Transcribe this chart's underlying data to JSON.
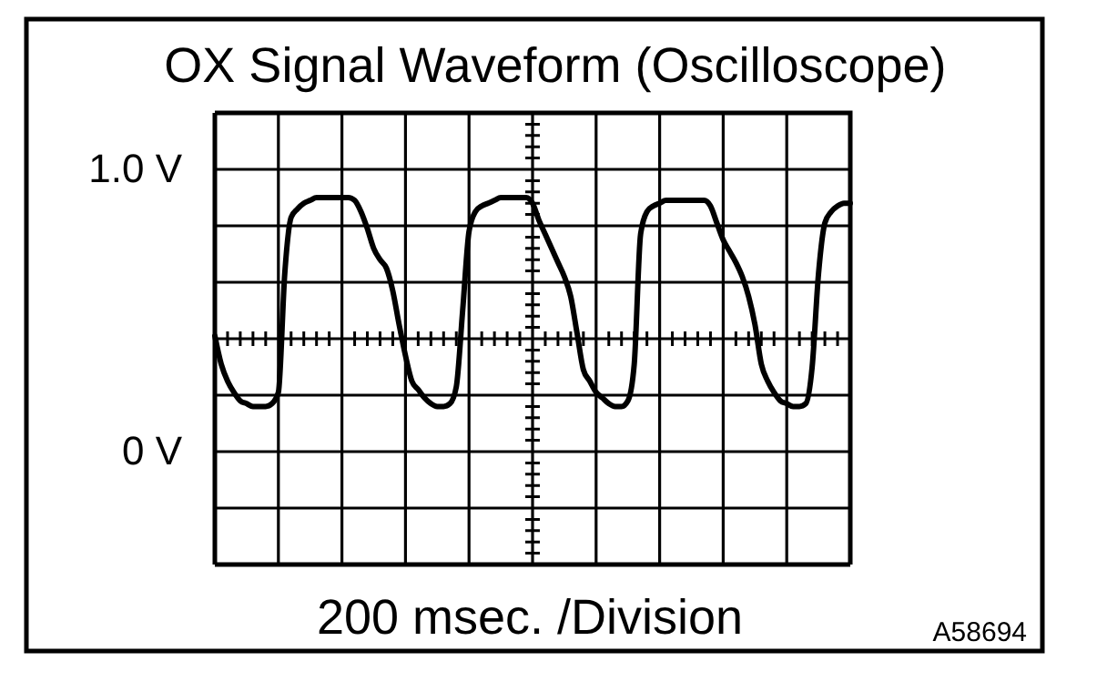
{
  "chart_data": {
    "type": "line",
    "title": "OX Signal Waveform (Oscilloscope)",
    "xlabel": "200 msec. /Division",
    "annotations": [
      "A58694"
    ],
    "categories": [
      null,
      null,
      null,
      null,
      null,
      null,
      null,
      null,
      null,
      null,
      null,
      null,
      null,
      null,
      null,
      null,
      null,
      null,
      null,
      null,
      null,
      null,
      null,
      null,
      null,
      null,
      null,
      null,
      null,
      null,
      null,
      null,
      null,
      null,
      null,
      null,
      null,
      null,
      null,
      null,
      null,
      null,
      null,
      null,
      null,
      null,
      null,
      null,
      null,
      null,
      null,
      null,
      null,
      null,
      null,
      null,
      null,
      null,
      null,
      null,
      null,
      null,
      null,
      null,
      null,
      null,
      null,
      null,
      null,
      null,
      null,
      null,
      null,
      null,
      null,
      null,
      null,
      null,
      null,
      null,
      null,
      null,
      null,
      null,
      null,
      null,
      null,
      null,
      null,
      null,
      null,
      null,
      null,
      null,
      null,
      null,
      null,
      null,
      null,
      null,
      null
    ],
    "series": [
      {
        "color": "#000000",
        "values": [
          0.41,
          0.31,
          0.25,
          0.21,
          0.18,
          0.17,
          0.16,
          0.16,
          0.16,
          0.17,
          0.21,
          0.63,
          0.83,
          0.86,
          0.88,
          0.89,
          0.9,
          0.9,
          0.9,
          0.9,
          0.9,
          0.9,
          0.89,
          0.85,
          0.79,
          0.72,
          0.68,
          0.65,
          0.57,
          0.45,
          0.34,
          0.25,
          0.22,
          0.19,
          0.17,
          0.16,
          0.16,
          0.17,
          0.23,
          0.5,
          0.78,
          0.85,
          0.87,
          0.88,
          0.89,
          0.9,
          0.9,
          0.9,
          0.9,
          0.9,
          0.88,
          0.82,
          0.77,
          0.72,
          0.67,
          0.62,
          0.55,
          0.42,
          0.29,
          0.25,
          0.21,
          0.19,
          0.17,
          0.16,
          0.16,
          0.18,
          0.31,
          0.77,
          0.85,
          0.87,
          0.88,
          0.89,
          0.89,
          0.89,
          0.89,
          0.89,
          0.89,
          0.89,
          0.87,
          0.81,
          0.75,
          0.71,
          0.67,
          0.62,
          0.55,
          0.45,
          0.31,
          0.25,
          0.21,
          0.18,
          0.17,
          0.16,
          0.16,
          0.17,
          0.3,
          0.63,
          0.81,
          0.85,
          0.87,
          0.88,
          0.88
        ]
      }
    ],
    "ylim": [
      -0.4,
      1.2
    ],
    "yticks": [
      {
        "value": -0.4,
        "label": null
      },
      {
        "value": -0.2,
        "label": null
      },
      {
        "value": 0,
        "label": "0 V"
      },
      {
        "value": 0.2,
        "label": null
      },
      {
        "value": 0.4,
        "label": null
      },
      {
        "value": 0.6,
        "label": null
      },
      {
        "value": 0.8,
        "label": null
      },
      {
        "value": 1.0,
        "label": "1.0 V"
      },
      {
        "value": 1.2,
        "label": null
      }
    ],
    "grid": true,
    "tick_labels": "y",
    "line_style": "solid"
  }
}
